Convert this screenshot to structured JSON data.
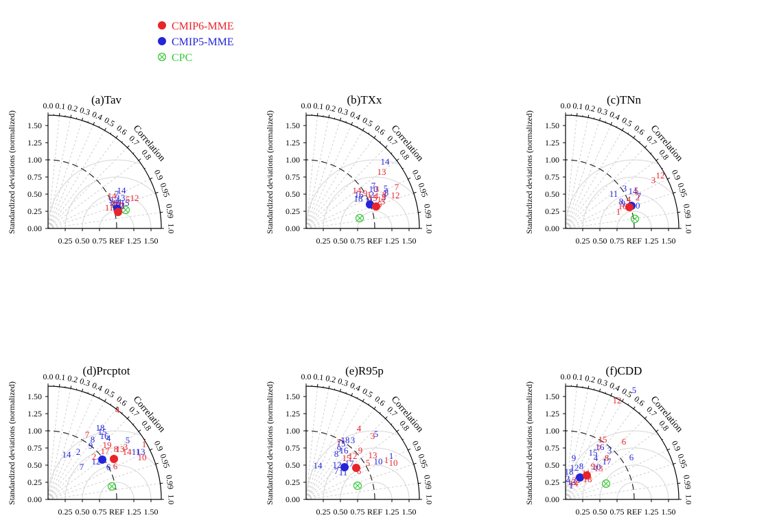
{
  "figure": {
    "y_axis_label": "Standardized deviations (normalized)",
    "ref_label": "REF",
    "correlation_label": "Correlation"
  },
  "legend": [
    {
      "label": "CMIP6-MME",
      "color": "#e8232a",
      "marker": "filled-circle"
    },
    {
      "label": "CMIP5-MME",
      "color": "#2424d8",
      "marker": "filled-circle"
    },
    {
      "label": "CPC",
      "color": "#36c936",
      "marker": "circle-cross"
    }
  ],
  "axes": {
    "std_ticks": [
      "0.25",
      "0.50",
      "0.75",
      "1.25",
      "1.50"
    ],
    "std_tick_values": [
      0.25,
      0.5,
      0.75,
      1.25,
      1.5
    ],
    "y_ticks": [
      "0.00",
      "0.25",
      "0.50",
      "0.75",
      "1.00",
      "1.25",
      "1.50"
    ],
    "y_tick_values": [
      0,
      0.25,
      0.5,
      0.75,
      1.0,
      1.25,
      1.5
    ],
    "corr_ticks": [
      "0.0",
      "0.1",
      "0.2",
      "0.3",
      "0.4",
      "0.5",
      "0.6",
      "0.7",
      "0.8",
      "0.9",
      "0.95",
      "0.99",
      "1.0"
    ],
    "corr_values": [
      0,
      0.1,
      0.2,
      0.3,
      0.4,
      0.5,
      0.6,
      0.7,
      0.8,
      0.9,
      0.95,
      0.99,
      1.0
    ],
    "max_std": 1.65
  },
  "chart_data": [
    {
      "type": "scatter",
      "chart_kind": "taylor-diagram",
      "title": "(a)Tav",
      "cmip6_mme": {
        "x": 1.02,
        "y": 0.24
      },
      "cmip5_mme": {
        "x": 1.01,
        "y": 0.29
      },
      "cpc": {
        "x": 1.13,
        "y": 0.27
      },
      "cmip6_labels": [
        {
          "t": "14",
          "x": 0.93,
          "y": 0.47
        },
        {
          "t": "5",
          "x": 1.16,
          "y": 0.42
        },
        {
          "t": "12",
          "x": 1.26,
          "y": 0.44
        },
        {
          "t": "11",
          "x": 0.89,
          "y": 0.3
        },
        {
          "t": "16",
          "x": 1.0,
          "y": 0.3
        },
        {
          "t": "10",
          "x": 1.03,
          "y": 0.34
        },
        {
          "t": "9",
          "x": 0.97,
          "y": 0.36
        },
        {
          "t": "2",
          "x": 1.07,
          "y": 0.32
        },
        {
          "t": "6",
          "x": 1.04,
          "y": 0.25
        }
      ],
      "cmip5_labels": [
        {
          "t": "14",
          "x": 1.07,
          "y": 0.55
        },
        {
          "t": "7",
          "x": 1.0,
          "y": 0.5
        },
        {
          "t": "13",
          "x": 1.06,
          "y": 0.44
        },
        {
          "t": "9",
          "x": 0.92,
          "y": 0.41
        },
        {
          "t": "3",
          "x": 1.0,
          "y": 0.41
        },
        {
          "t": "15",
          "x": 1.12,
          "y": 0.37
        },
        {
          "t": "1",
          "x": 1.1,
          "y": 0.33
        },
        {
          "t": "18",
          "x": 0.95,
          "y": 0.37
        },
        {
          "t": "17",
          "x": 0.99,
          "y": 0.34
        },
        {
          "t": "4",
          "x": 1.04,
          "y": 0.38
        }
      ]
    },
    {
      "type": "scatter",
      "chart_kind": "taylor-diagram",
      "title": "(b)TXx",
      "cmip6_mme": {
        "x": 1.02,
        "y": 0.32
      },
      "cmip5_mme": {
        "x": 0.93,
        "y": 0.35
      },
      "cpc": {
        "x": 0.78,
        "y": 0.15
      },
      "cmip6_labels": [
        {
          "t": "13",
          "x": 1.1,
          "y": 0.82
        },
        {
          "t": "7",
          "x": 1.32,
          "y": 0.6
        },
        {
          "t": "12",
          "x": 1.3,
          "y": 0.48
        },
        {
          "t": "14",
          "x": 0.74,
          "y": 0.55
        },
        {
          "t": "3",
          "x": 1.03,
          "y": 0.57
        },
        {
          "t": "9",
          "x": 0.86,
          "y": 0.51
        },
        {
          "t": "1",
          "x": 0.92,
          "y": 0.49
        },
        {
          "t": "15",
          "x": 0.97,
          "y": 0.44
        },
        {
          "t": "4",
          "x": 1.02,
          "y": 0.47
        },
        {
          "t": "5",
          "x": 1.12,
          "y": 0.39
        },
        {
          "t": "17",
          "x": 1.1,
          "y": 0.42
        },
        {
          "t": "6",
          "x": 1.07,
          "y": 0.35
        },
        {
          "t": "8",
          "x": 1.14,
          "y": 0.49
        }
      ],
      "cmip5_labels": [
        {
          "t": "14",
          "x": 1.15,
          "y": 0.97
        },
        {
          "t": "7",
          "x": 0.98,
          "y": 0.62
        },
        {
          "t": "5",
          "x": 1.16,
          "y": 0.58
        },
        {
          "t": "10",
          "x": 0.98,
          "y": 0.57
        },
        {
          "t": "16",
          "x": 0.77,
          "y": 0.49
        },
        {
          "t": "18",
          "x": 0.76,
          "y": 0.43
        },
        {
          "t": "2",
          "x": 0.96,
          "y": 0.49
        },
        {
          "t": "11",
          "x": 0.92,
          "y": 0.4
        },
        {
          "t": "8",
          "x": 1.17,
          "y": 0.52
        },
        {
          "t": "3",
          "x": 1.13,
          "y": 0.45
        }
      ]
    },
    {
      "type": "scatter",
      "chart_kind": "taylor-diagram",
      "title": "(c)TNn",
      "cmip6_mme": {
        "x": 0.93,
        "y": 0.31
      },
      "cmip5_mme": {
        "x": 0.96,
        "y": 0.33
      },
      "cpc": {
        "x": 1.01,
        "y": 0.14
      },
      "cmip6_labels": [
        {
          "t": "12",
          "x": 1.38,
          "y": 0.77
        },
        {
          "t": "3",
          "x": 1.28,
          "y": 0.7
        },
        {
          "t": "5",
          "x": 1.03,
          "y": 0.55
        },
        {
          "t": "1",
          "x": 0.77,
          "y": 0.24
        },
        {
          "t": "16",
          "x": 0.83,
          "y": 0.32
        },
        {
          "t": "2",
          "x": 1.05,
          "y": 0.45
        },
        {
          "t": "4",
          "x": 0.92,
          "y": 0.42
        }
      ],
      "cmip5_labels": [
        {
          "t": "3",
          "x": 0.86,
          "y": 0.58
        },
        {
          "t": "11",
          "x": 0.7,
          "y": 0.5
        },
        {
          "t": "14",
          "x": 0.98,
          "y": 0.54
        },
        {
          "t": "7",
          "x": 1.07,
          "y": 0.47
        },
        {
          "t": "8",
          "x": 0.81,
          "y": 0.39
        },
        {
          "t": "10",
          "x": 1.02,
          "y": 0.33
        },
        {
          "t": "9",
          "x": 0.84,
          "y": 0.36
        }
      ]
    },
    {
      "type": "scatter",
      "chart_kind": "taylor-diagram",
      "title": "(d)Prcptot",
      "cmip6_mme": {
        "x": 0.96,
        "y": 0.59
      },
      "cmip5_mme": {
        "x": 0.79,
        "y": 0.58
      },
      "cpc": {
        "x": 0.93,
        "y": 0.19
      },
      "cmip6_labels": [
        {
          "t": "4",
          "x": 1.01,
          "y": 1.3
        },
        {
          "t": "7",
          "x": 0.57,
          "y": 0.94
        },
        {
          "t": "1",
          "x": 1.4,
          "y": 0.8
        },
        {
          "t": "10",
          "x": 1.37,
          "y": 0.61
        },
        {
          "t": "2",
          "x": 0.67,
          "y": 0.62
        },
        {
          "t": "19",
          "x": 0.86,
          "y": 0.79
        },
        {
          "t": "17",
          "x": 0.83,
          "y": 0.7
        },
        {
          "t": "8",
          "x": 0.99,
          "y": 0.73
        },
        {
          "t": "13",
          "x": 1.05,
          "y": 0.73
        },
        {
          "t": "14",
          "x": 1.15,
          "y": 0.69
        },
        {
          "t": "3",
          "x": 1.13,
          "y": 0.76
        },
        {
          "t": "6",
          "x": 0.98,
          "y": 0.48
        }
      ],
      "cmip5_labels": [
        {
          "t": "18",
          "x": 0.76,
          "y": 1.04
        },
        {
          "t": "15",
          "x": 0.79,
          "y": 0.98
        },
        {
          "t": "16",
          "x": 0.82,
          "y": 0.92
        },
        {
          "t": "4",
          "x": 0.88,
          "y": 0.89
        },
        {
          "t": "8",
          "x": 0.65,
          "y": 0.87
        },
        {
          "t": "9",
          "x": 0.62,
          "y": 0.78
        },
        {
          "t": "14",
          "x": 0.27,
          "y": 0.65
        },
        {
          "t": "2",
          "x": 0.44,
          "y": 0.69
        },
        {
          "t": "7",
          "x": 0.49,
          "y": 0.47
        },
        {
          "t": "12",
          "x": 0.7,
          "y": 0.55
        },
        {
          "t": "5",
          "x": 1.16,
          "y": 0.86
        },
        {
          "t": "11",
          "x": 1.28,
          "y": 0.69
        },
        {
          "t": "13",
          "x": 1.35,
          "y": 0.69
        },
        {
          "t": "6",
          "x": 0.88,
          "y": 0.47
        }
      ]
    },
    {
      "type": "scatter",
      "chart_kind": "taylor-diagram",
      "title": "(e)R95p",
      "cmip6_mme": {
        "x": 0.73,
        "y": 0.46
      },
      "cmip5_mme": {
        "x": 0.56,
        "y": 0.47
      },
      "cpc": {
        "x": 0.75,
        "y": 0.2
      },
      "cmip6_labels": [
        {
          "t": "4",
          "x": 0.77,
          "y": 1.03
        },
        {
          "t": "3",
          "x": 0.97,
          "y": 0.92
        },
        {
          "t": "7",
          "x": 0.48,
          "y": 0.83
        },
        {
          "t": "9",
          "x": 0.79,
          "y": 0.71
        },
        {
          "t": "13",
          "x": 0.97,
          "y": 0.64
        },
        {
          "t": "12",
          "x": 0.68,
          "y": 0.63
        },
        {
          "t": "1",
          "x": 1.17,
          "y": 0.57
        },
        {
          "t": "10",
          "x": 1.27,
          "y": 0.53
        },
        {
          "t": "5",
          "x": 0.9,
          "y": 0.53
        },
        {
          "t": "15",
          "x": 0.59,
          "y": 0.6
        },
        {
          "t": "6",
          "x": 0.77,
          "y": 0.41
        }
      ],
      "cmip5_labels": [
        {
          "t": "5",
          "x": 1.02,
          "y": 0.95
        },
        {
          "t": "18",
          "x": 0.57,
          "y": 0.86
        },
        {
          "t": "3",
          "x": 0.68,
          "y": 0.86
        },
        {
          "t": "15",
          "x": 0.51,
          "y": 0.81
        },
        {
          "t": "9",
          "x": 0.48,
          "y": 0.73
        },
        {
          "t": "8",
          "x": 0.44,
          "y": 0.66
        },
        {
          "t": "16",
          "x": 0.55,
          "y": 0.71
        },
        {
          "t": "14",
          "x": 0.17,
          "y": 0.49
        },
        {
          "t": "12",
          "x": 0.45,
          "y": 0.5
        },
        {
          "t": "17",
          "x": 0.63,
          "y": 0.52
        },
        {
          "t": "1",
          "x": 1.24,
          "y": 0.63
        },
        {
          "t": "10",
          "x": 1.05,
          "y": 0.55
        },
        {
          "t": "7",
          "x": 0.44,
          "y": 0.41
        },
        {
          "t": "11",
          "x": 0.54,
          "y": 0.39
        }
      ]
    },
    {
      "type": "scatter",
      "chart_kind": "taylor-diagram",
      "title": "(f)CDD",
      "cmip6_mme": {
        "x": 0.31,
        "y": 0.35
      },
      "cmip5_mme": {
        "x": 0.21,
        "y": 0.32
      },
      "cpc": {
        "x": 0.59,
        "y": 0.23
      },
      "cmip6_labels": [
        {
          "t": "12",
          "x": 0.75,
          "y": 1.44
        },
        {
          "t": "6",
          "x": 0.85,
          "y": 0.84
        },
        {
          "t": "15",
          "x": 0.54,
          "y": 0.87
        },
        {
          "t": "7",
          "x": 0.49,
          "y": 0.74
        },
        {
          "t": "8",
          "x": 0.6,
          "y": 0.6
        },
        {
          "t": "9",
          "x": 0.4,
          "y": 0.48
        },
        {
          "t": "13",
          "x": 0.48,
          "y": 0.45
        },
        {
          "t": "11",
          "x": 0.3,
          "y": 0.38
        },
        {
          "t": "18",
          "x": 0.32,
          "y": 0.29
        },
        {
          "t": "14",
          "x": 0.12,
          "y": 0.23
        },
        {
          "t": "21",
          "x": 0.16,
          "y": 0.28
        }
      ],
      "cmip5_labels": [
        {
          "t": "5",
          "x": 1.0,
          "y": 1.59
        },
        {
          "t": "16",
          "x": 0.5,
          "y": 0.76
        },
        {
          "t": "3",
          "x": 0.64,
          "y": 0.71
        },
        {
          "t": "6",
          "x": 0.96,
          "y": 0.61
        },
        {
          "t": "15",
          "x": 0.4,
          "y": 0.68
        },
        {
          "t": "4",
          "x": 0.44,
          "y": 0.6
        },
        {
          "t": "17",
          "x": 0.6,
          "y": 0.55
        },
        {
          "t": "10",
          "x": 0.45,
          "y": 0.47
        },
        {
          "t": "9",
          "x": 0.12,
          "y": 0.6
        },
        {
          "t": "12",
          "x": 0.13,
          "y": 0.46
        },
        {
          "t": "8",
          "x": 0.23,
          "y": 0.48
        },
        {
          "t": "18",
          "x": 0.05,
          "y": 0.4
        },
        {
          "t": "2",
          "x": 0.03,
          "y": 0.3
        },
        {
          "t": "13",
          "x": 0.09,
          "y": 0.25
        },
        {
          "t": "1",
          "x": 0.08,
          "y": 0.2
        }
      ]
    }
  ]
}
